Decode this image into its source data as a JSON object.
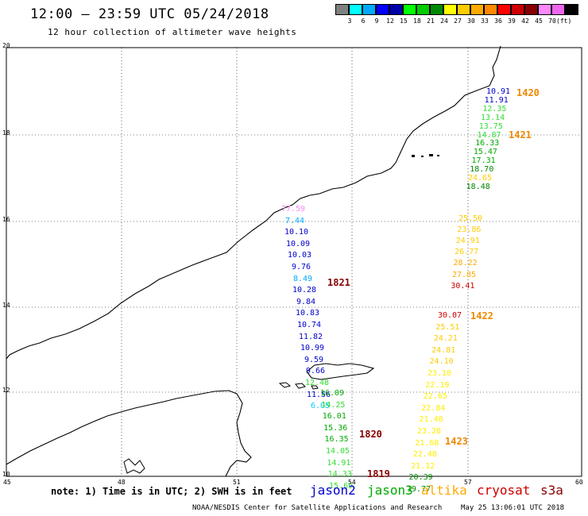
{
  "header": {
    "title": "12:00 – 23:59 UTC 05/24/2018",
    "subtitle": "12 hour collection of altimeter wave heights"
  },
  "legend": {
    "colors": [
      "#808080",
      "#00ffff",
      "#00aaff",
      "#0000ff",
      "#0000aa",
      "#00ff00",
      "#00cc00",
      "#008800",
      "#ffff00",
      "#ffcc00",
      "#ffaa00",
      "#ff8800",
      "#ff0000",
      "#cc0000",
      "#880000",
      "#ff88ff",
      "#ee66ee",
      "#000000"
    ],
    "levels": [
      "3",
      "6",
      "9",
      "12",
      "15",
      "18",
      "21",
      "24",
      "27",
      "30",
      "33",
      "36",
      "39",
      "42",
      "45",
      "70"
    ],
    "unit": "(ft)"
  },
  "axes": {
    "lat_labels": [
      "20",
      "18",
      "16",
      "14",
      "12",
      "10"
    ],
    "lon_labels": [
      "45",
      "48",
      "51",
      "54",
      "57",
      "60"
    ]
  },
  "tracks": [
    {
      "id": "1420",
      "time_label": "1420",
      "time_color": "#ee8800",
      "points": [
        {
          "v": "10.91",
          "c": "#0000cc"
        },
        {
          "v": "11.91",
          "c": "#0000cc"
        },
        {
          "v": "12.35",
          "c": "#33dd33"
        },
        {
          "v": "13.14",
          "c": "#33dd33"
        },
        {
          "v": "13.75",
          "c": "#33dd33"
        },
        {
          "v": "14.87",
          "c": "#33dd33"
        },
        {
          "v": "16.33",
          "c": "#00aa00"
        },
        {
          "v": "15.47",
          "c": "#00aa00"
        },
        {
          "v": "17.31",
          "c": "#00aa00"
        },
        {
          "v": "18.70",
          "c": "#008800"
        },
        {
          "v": "24.65",
          "c": "#ffcc00"
        },
        {
          "v": "18.48",
          "c": "#008800"
        }
      ]
    },
    {
      "id": "1421",
      "time_label": "1421",
      "time_color": "#ee8800",
      "points": [
        {
          "v": "25.50",
          "c": "#ffcc00"
        },
        {
          "v": "23.86",
          "c": "#ffcc00"
        },
        {
          "v": "24.91",
          "c": "#ffcc00"
        },
        {
          "v": "26.77",
          "c": "#ffcc00"
        },
        {
          "v": "28.22",
          "c": "#ffaa00"
        },
        {
          "v": "27.85",
          "c": "#ffaa00"
        },
        {
          "v": "30.41",
          "c": "#cc0000"
        }
      ]
    },
    {
      "id": "1822",
      "time_label": "",
      "time_color": "#000000",
      "points": [
        {
          "v": "77.59",
          "c": "#ff88ff"
        },
        {
          "v": "7.44",
          "c": "#00aaff"
        },
        {
          "v": "10.10",
          "c": "#0000cc"
        },
        {
          "v": "10.09",
          "c": "#0000cc"
        },
        {
          "v": "10.03",
          "c": "#0000cc"
        },
        {
          "v": "9.76",
          "c": "#0000cc"
        },
        {
          "v": "8.49",
          "c": "#00aaff"
        },
        {
          "v": "10.28",
          "c": "#0000cc"
        },
        {
          "v": "9.84",
          "c": "#0000cc"
        },
        {
          "v": "10.83",
          "c": "#0000cc"
        },
        {
          "v": "10.74",
          "c": "#0000cc"
        },
        {
          "v": "11.82",
          "c": "#0000cc"
        },
        {
          "v": "10.99",
          "c": "#0000cc"
        },
        {
          "v": "9.59",
          "c": "#0000cc"
        },
        {
          "v": "9.66",
          "c": "#0000cc"
        },
        {
          "v": "12.48",
          "c": "#33dd33"
        },
        {
          "v": "11.56",
          "c": "#0000cc"
        },
        {
          "v": "6.05",
          "c": "#00ccff"
        }
      ]
    },
    {
      "id": "1820",
      "time_label": "1820",
      "time_color": "#880000",
      "points": [
        {
          "v": "16.09",
          "c": "#00aa00"
        },
        {
          "v": "14.25",
          "c": "#33dd33"
        },
        {
          "v": "16.01",
          "c": "#00aa00"
        },
        {
          "v": "15.36",
          "c": "#00aa00"
        },
        {
          "v": "16.35",
          "c": "#00aa00"
        },
        {
          "v": "14.05",
          "c": "#33dd33"
        },
        {
          "v": "14.91",
          "c": "#33dd33"
        },
        {
          "v": "14.33",
          "c": "#33dd33"
        },
        {
          "v": "15.69",
          "c": "#33dd33"
        }
      ]
    },
    {
      "id": "1422",
      "time_label": "1422",
      "time_color": "#ee8800",
      "points": [
        {
          "v": "30.07",
          "c": "#cc0000"
        },
        {
          "v": "25.51",
          "c": "#ffcc00"
        },
        {
          "v": "24.21",
          "c": "#ffcc00"
        },
        {
          "v": "24.81",
          "c": "#ffcc00"
        },
        {
          "v": "24.10",
          "c": "#ffcc00"
        },
        {
          "v": "23.18",
          "c": "#ffee00"
        },
        {
          "v": "22.19",
          "c": "#ffee00"
        },
        {
          "v": "22.65",
          "c": "#ffee00"
        },
        {
          "v": "22.84",
          "c": "#ffee00"
        },
        {
          "v": "21.48",
          "c": "#ffee00"
        },
        {
          "v": "23.28",
          "c": "#ffee00"
        },
        {
          "v": "21.68",
          "c": "#ffee00"
        },
        {
          "v": "22.48",
          "c": "#ffee00"
        },
        {
          "v": "21.12",
          "c": "#ffee00"
        },
        {
          "v": "20.39",
          "c": "#008800"
        },
        {
          "v": "19.77",
          "c": "#008800"
        }
      ]
    }
  ],
  "extra_time_labels": {
    "t1821": "1821",
    "t1423": "1423",
    "t1819": "1819"
  },
  "note": "note: 1) Time is in UTC; 2) SWH is in feet",
  "satellites": [
    {
      "name": "jason2",
      "color": "#0000cc"
    },
    {
      "name": "jason3",
      "color": "#00aa00"
    },
    {
      "name": "altika",
      "color": "#ffaa00"
    },
    {
      "name": "cryosat",
      "color": "#cc0000"
    },
    {
      "name": "s3a",
      "color": "#880000"
    }
  ],
  "footer": {
    "credit": "NOAA/NESDIS Center for Satellite Applications and Research",
    "timestamp": "May 25 13:06:01 UTC 2018"
  }
}
